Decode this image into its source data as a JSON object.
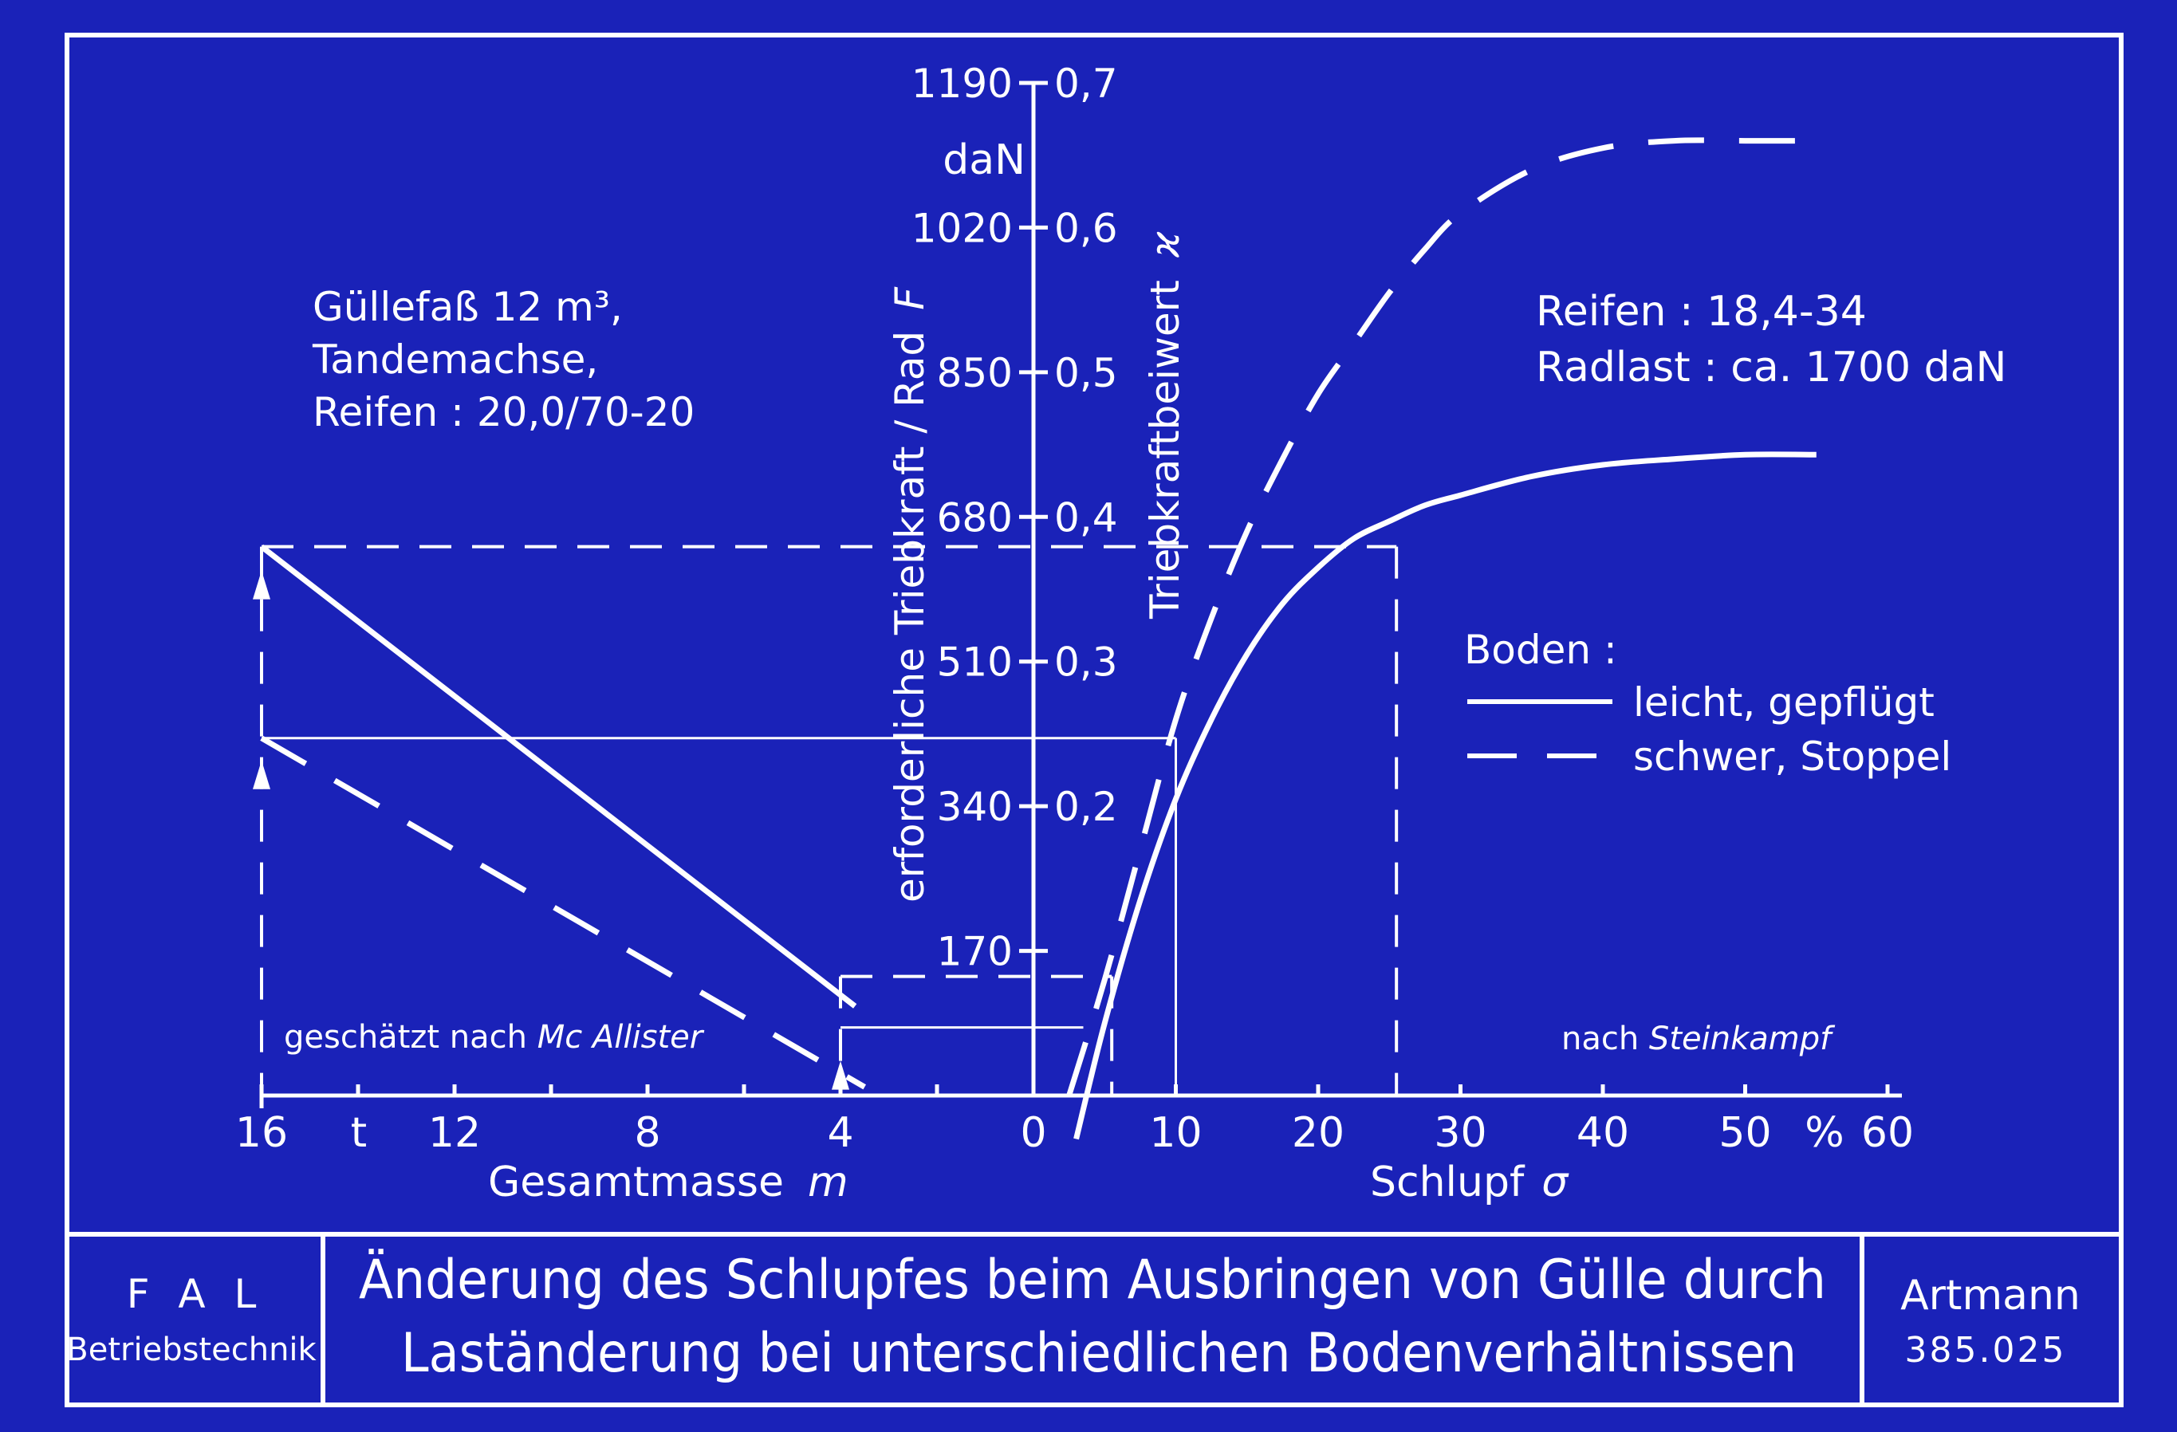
{
  "header": {
    "slope_info_lines": [
      "Güllefaß  12 m³,",
      "Tandemachse,",
      "Reifen : 20,0/70-20"
    ],
    "tyre_info_lines": [
      "Reifen : 18,4-34",
      "Radlast : ca. 1700 daN"
    ],
    "source_left_prefix": "geschätzt nach ",
    "source_left_name": "Mc Allister",
    "source_right_prefix": "nach ",
    "source_right_name": "Steinkampf"
  },
  "legend": {
    "title": "Boden :",
    "solid_label": "leicht, gepflügt",
    "dashed_label": "schwer, Stoppel"
  },
  "colors": {
    "background": "#1a22b8",
    "ink": "#ffffff"
  },
  "footer": {
    "org_line1": "F A L",
    "org_line2": "Betriebstechnik",
    "title_line1": "Änderung des Schlupfes beim Ausbringen von Gülle durch",
    "title_line2": "Laständerung bei unterschiedlichen Bodenverhältnissen",
    "author": "Artmann",
    "ref_number": "385.025"
  },
  "chart_data": [
    {
      "type": "line",
      "panel": "left",
      "xlabel": "Gesamtmasse",
      "xlabel_symbol": "m",
      "x_unit": "t",
      "x_reversed": true,
      "xlim": [
        0,
        16
      ],
      "x_ticks": [
        "16",
        "12",
        "8",
        "4",
        "0"
      ],
      "ylabel": "erforderliche Triebkraft / Rad",
      "ylabel_symbol": "F",
      "y_unit": "daN",
      "ylim": [
        0,
        1190
      ],
      "y_ticks": [
        "170",
        "340",
        "510",
        "680",
        "850",
        "1020",
        "1190"
      ],
      "series": [
        {
          "style": "solid",
          "x": [
            16,
            3.7
          ],
          "y": [
            645,
            105
          ]
        },
        {
          "style": "dashed",
          "x": [
            16,
            3.5
          ],
          "y": [
            420,
            10
          ]
        }
      ],
      "guide_values": {
        "m_upper": 16,
        "m_lower": 4,
        "F_solid_at_16": 645,
        "F_dashed_at_16": 420,
        "F_solid_at_4": 140,
        "F_dashed_at_4": 80
      }
    },
    {
      "type": "line",
      "panel": "right",
      "xlabel": "Schlupf",
      "xlabel_symbol": "σ",
      "x_unit": "%",
      "xlim": [
        0,
        60
      ],
      "x_ticks": [
        "10",
        "20",
        "30",
        "40",
        "50",
        "60"
      ],
      "ylabel": "Triebkraftbeiwert",
      "ylabel_symbol": "ϰ",
      "ylim": [
        0,
        0.7
      ],
      "y_ticks": [
        "0,2",
        "0,3",
        "0,4",
        "0,5",
        "0,6",
        "0,7"
      ],
      "series": [
        {
          "style": "solid",
          "x": [
            3,
            5,
            7.5,
            10,
            12.5,
            15,
            17.5,
            20,
            22.5,
            25,
            27.5,
            30,
            35,
            40,
            45,
            50,
            55
          ],
          "y": [
            -0.03,
            0.05,
            0.135,
            0.205,
            0.26,
            0.305,
            0.34,
            0.365,
            0.385,
            0.397,
            0.408,
            0.415,
            0.428,
            0.436,
            0.44,
            0.443,
            0.443
          ]
        },
        {
          "style": "dashed",
          "x": [
            2.5,
            5,
            7.5,
            10,
            12.5,
            15,
            17.5,
            20,
            22.5,
            25,
            27.5,
            30,
            35,
            40,
            45,
            50,
            55
          ],
          "y": [
            0.0,
            0.08,
            0.17,
            0.26,
            0.33,
            0.39,
            0.44,
            0.485,
            0.52,
            0.555,
            0.585,
            0.61,
            0.64,
            0.655,
            0.66,
            0.66,
            0.66
          ]
        }
      ],
      "guide_values": {
        "sigma_at_F645_solid": 25.5,
        "sigma_at_F420_solid": 10,
        "sigma_at_F140": 5.5,
        "sigma_at_F80": 3.5
      }
    }
  ]
}
